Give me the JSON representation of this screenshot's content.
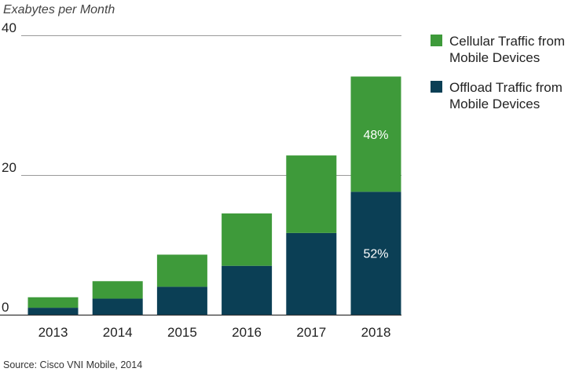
{
  "chart_data": {
    "type": "bar",
    "stacked": true,
    "ylabel": "Exabytes per Month",
    "ylim": [
      0,
      40
    ],
    "yticks": [
      0,
      20,
      40
    ],
    "categories": [
      "2013",
      "2014",
      "2015",
      "2016",
      "2017",
      "2018"
    ],
    "series": [
      {
        "name": "Offload Traffic from Mobile Devices",
        "legend_lines": [
          "Offload Traffic from",
          "Mobile Devices"
        ],
        "color": "#0b3f55",
        "values": [
          1.0,
          2.3,
          4.0,
          7.0,
          11.7,
          17.6
        ]
      },
      {
        "name": "Cellular Traffic from Mobile Devices",
        "legend_lines": [
          "Cellular Traffic from",
          "Mobile Devices"
        ],
        "color": "#3e9a3a",
        "values": [
          1.5,
          2.5,
          4.6,
          7.5,
          11.1,
          16.5
        ]
      }
    ],
    "annotations": [
      {
        "category": "2018",
        "series": "Cellular Traffic from Mobile Devices",
        "text": "48%"
      },
      {
        "category": "2018",
        "series": "Offload Traffic from Mobile Devices",
        "text": "52%"
      }
    ],
    "legend_order": [
      "Cellular Traffic from Mobile Devices",
      "Offload Traffic from Mobile Devices"
    ],
    "legend_position": "right",
    "source": "Source: Cisco VNI Mobile, 2014"
  }
}
